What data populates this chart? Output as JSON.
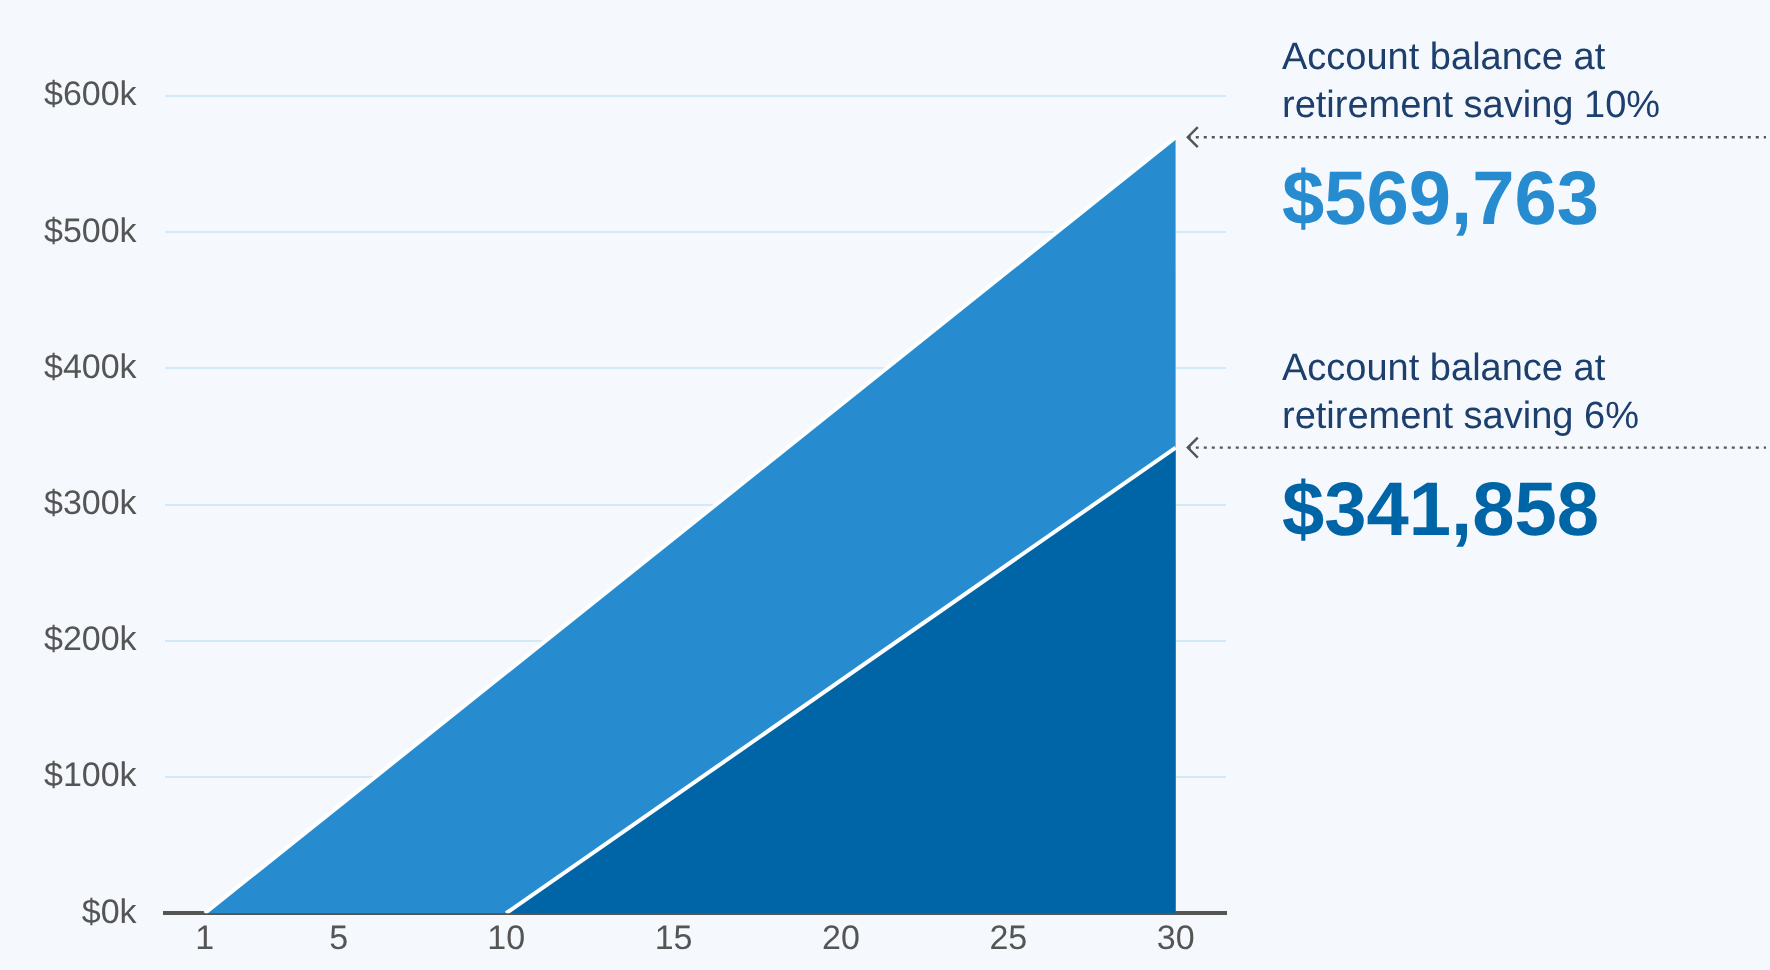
{
  "chart_data": {
    "type": "area",
    "xlim": [
      -0.2,
      31.5
    ],
    "xticks": [
      1,
      5,
      10,
      15,
      20,
      25,
      30
    ],
    "ylim": [
      0,
      600000
    ],
    "yticks": [
      {
        "value": 0,
        "label": "$0k"
      },
      {
        "value": 100000,
        "label": "$100k"
      },
      {
        "value": 200000,
        "label": "$200k"
      },
      {
        "value": 300000,
        "label": "$300k"
      },
      {
        "value": 400000,
        "label": "$400k"
      },
      {
        "value": 500000,
        "label": "$500k"
      },
      {
        "value": 600000,
        "label": "$600k"
      }
    ],
    "grid": "y",
    "legend": false,
    "series": [
      {
        "color": "#268ccf",
        "x": [
          1,
          30
        ],
        "values": [
          0,
          569763
        ],
        "value_labels": [
          null,
          "$569,763"
        ]
      },
      {
        "color": "#0065a7",
        "x": [
          10,
          30
        ],
        "values": [
          0,
          341858
        ],
        "value_labels": [
          null,
          "$341,858"
        ]
      }
    ],
    "annotations": [
      {
        "text": "Account balance at retirement saving 10%",
        "x": 30,
        "y": 569763
      },
      {
        "text": "Account balance at retirement saving 6%",
        "x": 30,
        "y": 341858
      }
    ]
  }
}
